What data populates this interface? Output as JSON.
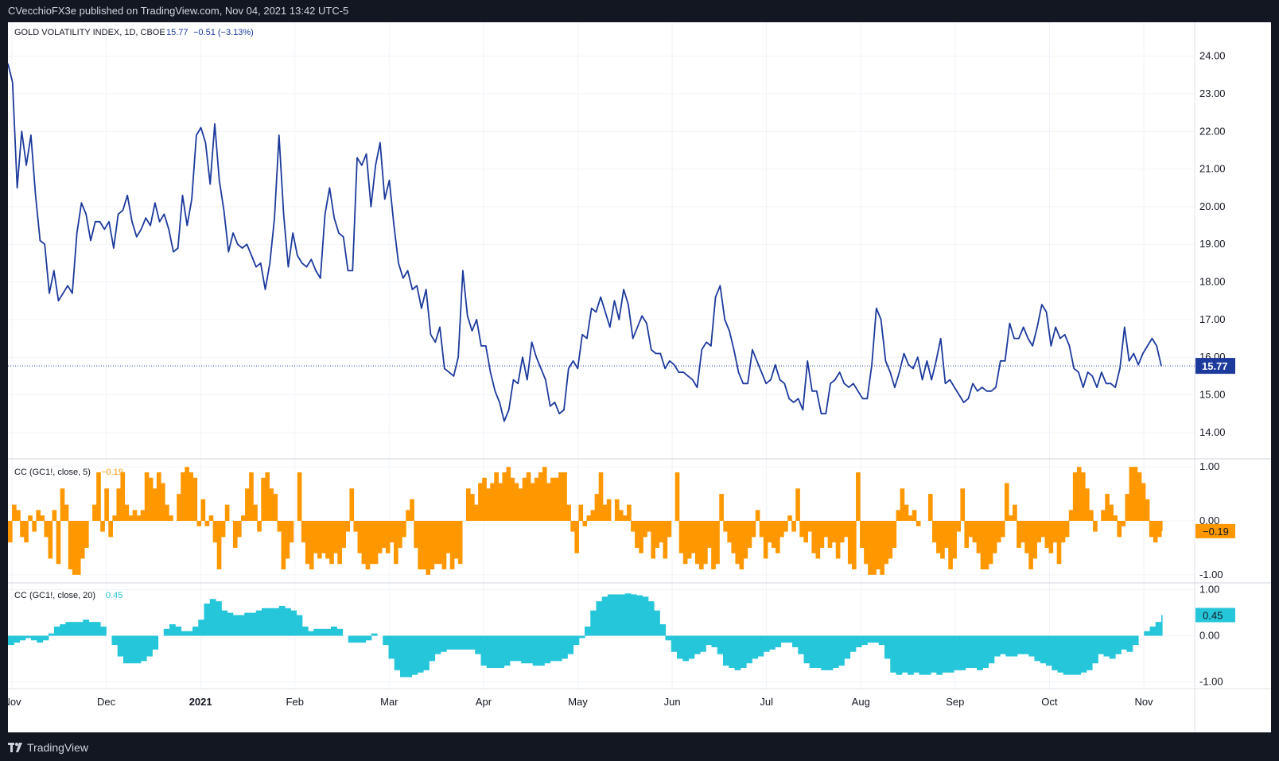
{
  "publisher_text": "CVecchioFX3e published on TradingView.com, Nov 04, 2021 13:42 UTC-5",
  "brand": "TradingView",
  "colors": {
    "main_line": "#1c3a9c",
    "cc5_fill": "#ff9800",
    "cc20_fill": "#26c6da",
    "price_label_bg": "#1c3a9c",
    "grid": "#f0f3fa"
  },
  "chart_data": [
    {
      "type": "line",
      "title": "GOLD VOLATILITY INDEX, 1D, CBOE",
      "last_value": "15.77",
      "change": "−0.51 (−3.13%)",
      "ylim": [
        13.3,
        24.9
      ],
      "y_ticks": [
        "24.00",
        "23.00",
        "22.00",
        "21.00",
        "20.00",
        "19.00",
        "18.00",
        "17.00",
        "16.00",
        "15.00",
        "14.00"
      ],
      "x_ticks": [
        "Nov",
        "Dec",
        "2021",
        "Feb",
        "Mar",
        "Apr",
        "May",
        "Jun",
        "Jul",
        "Aug",
        "Sep",
        "Oct",
        "Nov"
      ],
      "series": [
        {
          "values": [
            23.8,
            23.3,
            20.5,
            22.0,
            21.1,
            21.9,
            20.3,
            19.1,
            19.0,
            17.7,
            18.3,
            17.5,
            17.7,
            17.9,
            17.7,
            19.3,
            20.1,
            19.8,
            19.1,
            19.6,
            19.6,
            19.4,
            19.6,
            18.9,
            19.8,
            19.9,
            20.3,
            19.6,
            19.2,
            19.4,
            19.7,
            19.5,
            20.1,
            19.6,
            19.8,
            19.4,
            18.8,
            18.9,
            20.3,
            19.5,
            20.2,
            21.9,
            22.1,
            21.7,
            20.6,
            22.2,
            20.7,
            19.9,
            18.8,
            19.3,
            19.0,
            18.9,
            19.0,
            18.7,
            18.4,
            18.5,
            17.8,
            18.5,
            19.7,
            21.9,
            19.8,
            18.4,
            19.3,
            18.7,
            18.5,
            18.4,
            18.6,
            18.3,
            18.1,
            19.8,
            20.5,
            19.7,
            19.3,
            19.2,
            18.3,
            18.3,
            21.3,
            21.1,
            21.4,
            20.0,
            21.1,
            21.7,
            20.2,
            20.7,
            19.5,
            18.5,
            18.1,
            18.3,
            17.8,
            17.9,
            17.3,
            17.8,
            16.6,
            16.4,
            16.8,
            15.7,
            15.6,
            15.5,
            16.0,
            18.3,
            17.1,
            16.7,
            17.0,
            16.3,
            16.3,
            15.6,
            15.1,
            14.8,
            14.3,
            14.6,
            15.4,
            15.3,
            16.0,
            15.4,
            16.4,
            16.0,
            15.7,
            15.4,
            14.7,
            14.8,
            14.5,
            14.6,
            15.7,
            15.9,
            15.7,
            16.6,
            16.5,
            17.3,
            17.2,
            17.6,
            17.2,
            16.8,
            17.5,
            17.0,
            17.8,
            17.4,
            16.5,
            16.8,
            17.1,
            16.9,
            16.2,
            16.1,
            16.1,
            15.7,
            15.9,
            15.8,
            15.6,
            15.6,
            15.5,
            15.4,
            15.2,
            16.2,
            16.4,
            16.3,
            17.6,
            17.9,
            17.0,
            16.7,
            16.2,
            15.6,
            15.3,
            15.3,
            16.2,
            15.9,
            15.6,
            15.3,
            15.4,
            15.8,
            15.4,
            15.3,
            14.9,
            14.8,
            14.9,
            14.6,
            15.9,
            15.1,
            15.1,
            14.5,
            14.5,
            15.3,
            15.4,
            15.6,
            15.3,
            15.2,
            15.3,
            15.1,
            14.9,
            14.9,
            15.8,
            17.3,
            17.0,
            15.9,
            15.6,
            15.2,
            15.6,
            16.1,
            15.8,
            15.7,
            16.0,
            15.4,
            15.9,
            15.4,
            15.9,
            16.5,
            15.3,
            15.4,
            15.2,
            15.0,
            14.8,
            14.9,
            15.3,
            15.1,
            15.2,
            15.1,
            15.1,
            15.2,
            15.9,
            15.9,
            16.9,
            16.5,
            16.5,
            16.8,
            16.5,
            16.3,
            16.8,
            17.4,
            17.2,
            16.3,
            16.8,
            16.5,
            16.6,
            16.3,
            15.7,
            15.6,
            15.2,
            15.6,
            15.5,
            15.2,
            15.6,
            15.3,
            15.3,
            15.2,
            15.7,
            16.8,
            15.9,
            16.1,
            15.8,
            16.1,
            16.3,
            16.5,
            16.3,
            15.77
          ]
        }
      ]
    },
    {
      "type": "area",
      "title": "CC (GC1!, close, 5)",
      "last_value": "−0.19",
      "ylim": [
        -1.15,
        1.15
      ],
      "y_ticks": [
        "1.00",
        "0.00",
        "-1.00"
      ],
      "series": [
        {
          "values": [
            -0.4,
            0.3,
            0.2,
            -0.3,
            -0.4,
            0.1,
            -0.2,
            0.2,
            0.1,
            -0.3,
            -0.7,
            0.2,
            -0.8,
            0.6,
            0.3,
            -0.9,
            -1.0,
            -1.0,
            -0.7,
            -0.5,
            0.0,
            0.3,
            0.9,
            -0.2,
            0.6,
            -0.3,
            0.1,
            0.6,
            0.9,
            0.3,
            0.1,
            0.2,
            0.1,
            0.2,
            0.9,
            0.8,
            0.6,
            0.9,
            0.7,
            0.3,
            0.1,
            0.0,
            0.5,
            0.9,
            1.0,
            0.9,
            0.8,
            -0.1,
            0.4,
            -0.1,
            0.1,
            -0.4,
            -0.9,
            -0.3,
            0.3,
            0.0,
            -0.5,
            -0.3,
            0.1,
            0.6,
            0.9,
            0.3,
            -0.2,
            0.8,
            0.9,
            0.6,
            0.5,
            -0.2,
            -0.9,
            -0.7,
            -0.4,
            0.0,
            0.9,
            -0.4,
            -0.8,
            -0.9,
            -0.6,
            -0.7,
            -0.6,
            -0.7,
            -0.8,
            -0.6,
            -0.8,
            -0.5,
            -0.2,
            0.6,
            -0.2,
            -0.6,
            -0.8,
            -0.9,
            -0.8,
            -0.8,
            -0.6,
            -0.5,
            -0.6,
            -0.4,
            -0.8,
            -0.5,
            -0.3,
            0.2,
            0.4,
            -0.5,
            -0.9,
            -0.9,
            -1.0,
            -0.9,
            -0.8,
            -0.8,
            -0.9,
            -0.6,
            -0.9,
            -0.7,
            -0.8,
            0.0,
            0.6,
            0.5,
            0.3,
            0.7,
            0.8,
            0.6,
            0.7,
            0.9,
            0.7,
            0.9,
            1.0,
            0.8,
            0.7,
            0.6,
            0.8,
            0.9,
            0.7,
            0.8,
            0.9,
            1.0,
            0.7,
            0.8,
            0.8,
            0.9,
            0.9,
            0.3,
            -0.2,
            -0.6,
            0.3,
            -0.1,
            0.1,
            0.2,
            0.5,
            0.9,
            0.3,
            0.4,
            0.0,
            0.4,
            0.2,
            0.1,
            0.3,
            -0.2,
            -0.5,
            -0.6,
            -0.3,
            -0.2,
            -0.7,
            -0.5,
            -0.4,
            -0.7,
            -0.3,
            0.0,
            0.9,
            -0.6,
            -0.8,
            -0.7,
            -0.6,
            -0.8,
            -0.9,
            -0.8,
            -0.5,
            -0.9,
            -0.8,
            0.5,
            -0.2,
            -0.4,
            -0.6,
            -0.8,
            -0.9,
            -0.7,
            -0.5,
            -0.3,
            0.2,
            -0.3,
            -0.7,
            -0.4,
            -0.5,
            -0.6,
            -0.3,
            -0.2,
            0.1,
            -0.2,
            0.6,
            -0.3,
            -0.4,
            -0.2,
            -0.6,
            -0.7,
            -0.5,
            -0.3,
            -0.5,
            -0.4,
            -0.7,
            -0.4,
            -0.3,
            -0.8,
            -0.9,
            0.9,
            -0.5,
            -0.8,
            -1.0,
            -1.0,
            -0.9,
            -1.0,
            -0.8,
            -0.7,
            -0.5,
            0.2,
            0.6,
            0.3,
            0.1,
            0.2,
            -0.1,
            0.0,
            0.0,
            0.5,
            -0.4,
            -0.6,
            -0.7,
            -0.5,
            -0.9,
            -0.7,
            -0.2,
            0.6,
            -0.5,
            -0.3,
            -0.4,
            -0.6,
            -0.9,
            -0.9,
            -0.8,
            -0.6,
            -0.4,
            -0.3,
            0.7,
            0.1,
            0.3,
            -0.5,
            -0.4,
            -0.6,
            -0.9,
            -0.7,
            -0.4,
            -0.3,
            -0.5,
            -0.6,
            -0.4,
            -0.8,
            -0.4,
            -0.3,
            0.2,
            0.9,
            1.0,
            0.9,
            0.6,
            0.2,
            -0.2,
            0.0,
            0.2,
            0.5,
            0.3,
            0.1,
            -0.3,
            -0.1,
            0.5,
            1.0,
            1.0,
            0.9,
            0.7,
            0.4,
            -0.3,
            -0.4,
            -0.3,
            -0.19
          ]
        }
      ]
    },
    {
      "type": "area",
      "title": "CC (GC1!, close, 20)",
      "last_value": "0.45",
      "ylim": [
        -1.15,
        1.15
      ],
      "y_ticks": [
        "1.00",
        "0.00",
        "-1.00"
      ],
      "series": [
        {
          "values": [
            -0.2,
            -0.15,
            -0.1,
            -0.05,
            -0.1,
            -0.15,
            -0.1,
            0.05,
            0.2,
            0.25,
            0.3,
            0.3,
            0.3,
            0.35,
            0.3,
            0.3,
            0.2,
            0.0,
            -0.2,
            -0.45,
            -0.6,
            -0.6,
            -0.6,
            -0.55,
            -0.45,
            -0.3,
            0.0,
            0.15,
            0.25,
            0.2,
            0.1,
            0.1,
            0.2,
            0.35,
            0.7,
            0.8,
            0.75,
            0.55,
            0.5,
            0.45,
            0.45,
            0.5,
            0.5,
            0.55,
            0.6,
            0.6,
            0.6,
            0.65,
            0.6,
            0.55,
            0.45,
            0.2,
            0.1,
            0.15,
            0.15,
            0.15,
            0.2,
            0.15,
            0.0,
            -0.15,
            -0.15,
            -0.15,
            -0.1,
            0.05,
            0.0,
            -0.2,
            -0.5,
            -0.75,
            -0.9,
            -0.9,
            -0.85,
            -0.8,
            -0.75,
            -0.55,
            -0.4,
            -0.35,
            -0.3,
            -0.3,
            -0.3,
            -0.3,
            -0.3,
            -0.4,
            -0.65,
            -0.7,
            -0.7,
            -0.7,
            -0.65,
            -0.55,
            -0.55,
            -0.6,
            -0.6,
            -0.65,
            -0.65,
            -0.6,
            -0.55,
            -0.55,
            -0.5,
            -0.4,
            -0.2,
            -0.05,
            0.2,
            0.55,
            0.75,
            0.85,
            0.9,
            0.9,
            0.9,
            0.92,
            0.9,
            0.88,
            0.85,
            0.75,
            0.55,
            0.25,
            -0.1,
            -0.35,
            -0.5,
            -0.55,
            -0.5,
            -0.4,
            -0.35,
            -0.2,
            -0.25,
            -0.4,
            -0.65,
            -0.7,
            -0.75,
            -0.7,
            -0.6,
            -0.5,
            -0.45,
            -0.35,
            -0.3,
            -0.25,
            -0.15,
            -0.15,
            -0.25,
            -0.4,
            -0.6,
            -0.7,
            -0.7,
            -0.75,
            -0.75,
            -0.7,
            -0.65,
            -0.5,
            -0.35,
            -0.25,
            -0.2,
            -0.15,
            -0.15,
            -0.2,
            -0.5,
            -0.8,
            -0.85,
            -0.8,
            -0.85,
            -0.8,
            -0.85,
            -0.85,
            -0.8,
            -0.85,
            -0.8,
            -0.8,
            -0.75,
            -0.75,
            -0.7,
            -0.7,
            -0.75,
            -0.7,
            -0.6,
            -0.45,
            -0.4,
            -0.45,
            -0.45,
            -0.4,
            -0.4,
            -0.45,
            -0.55,
            -0.6,
            -0.65,
            -0.75,
            -0.8,
            -0.85,
            -0.85,
            -0.85,
            -0.8,
            -0.75,
            -0.6,
            -0.4,
            -0.45,
            -0.5,
            -0.4,
            -0.3,
            -0.35,
            -0.2,
            0.0,
            0.1,
            0.2,
            0.3,
            0.45
          ]
        }
      ]
    }
  ]
}
